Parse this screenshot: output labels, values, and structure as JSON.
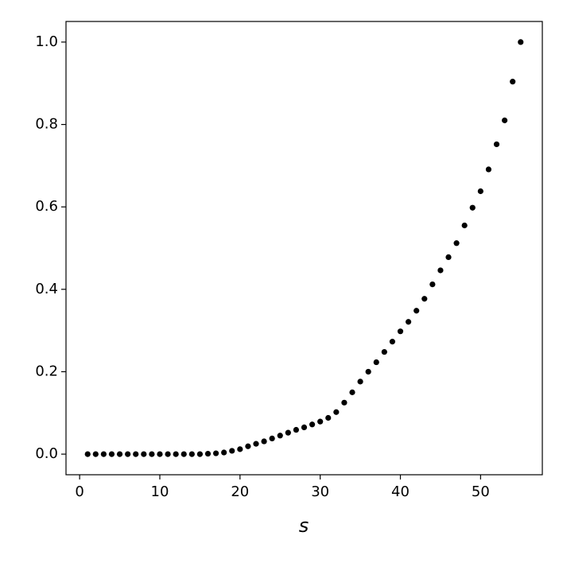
{
  "chart_data": {
    "type": "scatter",
    "xlabel": "s",
    "x": [
      1,
      2,
      3,
      4,
      5,
      6,
      7,
      8,
      9,
      10,
      11,
      12,
      13,
      14,
      15,
      16,
      17,
      18,
      19,
      20,
      21,
      22,
      23,
      24,
      25,
      26,
      27,
      28,
      29,
      30,
      31,
      32,
      33,
      34,
      35,
      36,
      37,
      38,
      39,
      40,
      41,
      42,
      43,
      44,
      45,
      46,
      47,
      48,
      49,
      50,
      51,
      52,
      53,
      54,
      55
    ],
    "values": [
      0,
      0,
      0,
      0,
      0,
      0,
      0,
      0,
      0,
      0,
      0,
      0,
      0,
      0,
      0,
      0.001,
      0.002,
      0.004,
      0.008,
      0.012,
      0.019,
      0.025,
      0.031,
      0.038,
      0.045,
      0.052,
      0.059,
      0.065,
      0.072,
      0.079,
      0.088,
      0.102,
      0.125,
      0.15,
      0.176,
      0.2,
      0.223,
      0.248,
      0.273,
      0.298,
      0.321,
      0.348,
      0.377,
      0.412,
      0.446,
      0.478,
      0.512,
      0.555,
      0.598,
      0.638,
      0.691,
      0.752,
      0.81,
      0.904,
      1.0
    ],
    "color": "#000000",
    "xlim": [
      -1.7,
      57.7
    ],
    "xticks": [
      0,
      10,
      20,
      30,
      40,
      50
    ],
    "ylim": [
      -0.05,
      1.05
    ],
    "yticks": [
      {
        "value": 0,
        "label": "0.0"
      },
      {
        "value": 0.2,
        "label": "0.2"
      },
      {
        "value": 0.4,
        "label": "0.4"
      },
      {
        "value": 0.6,
        "label": "0.6"
      },
      {
        "value": 0.8,
        "label": "0.8"
      },
      {
        "value": 1.0,
        "label": "1.0"
      }
    ]
  }
}
